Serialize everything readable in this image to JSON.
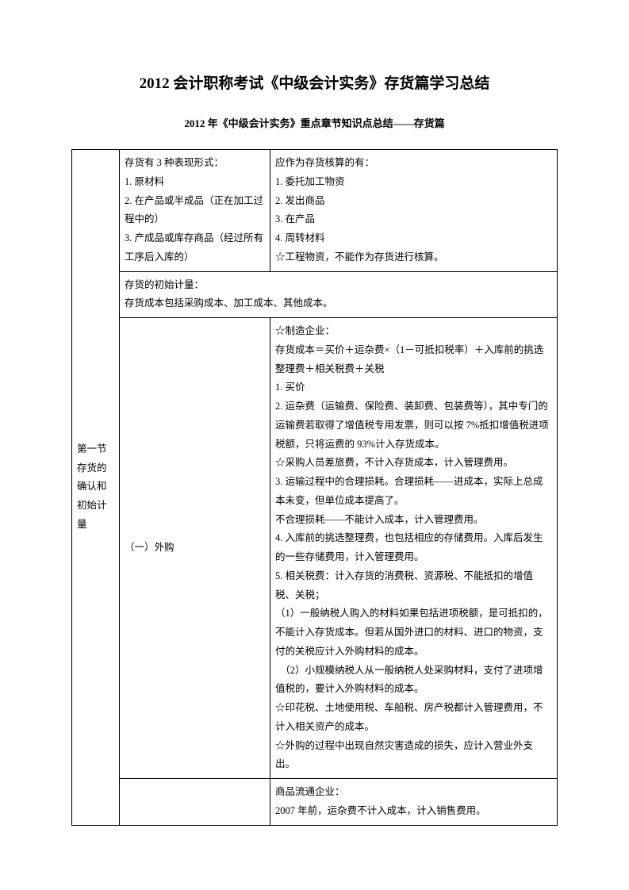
{
  "title": "2012 会计职称考试《中级会计实务》存货篇学习总结",
  "subtitle": "2012 年《中级会计实务》重点章节知识点总结——存货篇",
  "section_label": "第一节 存货的确认和初始计量",
  "row1": {
    "left": "存货有 3 种表现形式：\n1. 原材料\n2. 在产品或半成品（正在加工过程中的）\n3. 产成品或库存商品（经过所有工序后入库的）",
    "right": "应作为存货核算的有：\n1. 委托加工物资\n2. 发出商品\n3. 在产品\n4. 周转材料\n☆工程物资，不能作为存货进行核算。"
  },
  "row2": {
    "full": "存货的初始计量：\n存货成本包括采购成本、加工成本、其他成本。"
  },
  "row3": {
    "left": "（一）外购",
    "right_lines": [
      "☆制造企业：",
      "存货成本＝买价＋运杂费×（1－可抵扣税率）＋入库前的挑选整理费＋相关税费＋关税",
      "1. 买价",
      "2. 运杂费（运输费、保险费、装卸费、包装费等），其中专门的运输费若取得了增值税专用发票，则可以按 7%抵扣增值税进项税额，只将运费的 93%计入存货成本。",
      "☆采购人员差旅费，不计入存货成本，计入管理费用。",
      "3. 运输过程中的合理损耗。合理损耗——进成本，实际上总成本未变，但单位成本提高了。",
      "不合理损耗——不能计入成本，计入管理费用。",
      "4. 入库前的挑选整理费，也包括相应的存储费用。入库后发生的一些存储费用，计入管理费用。",
      "5. 相关税费：计入存货的消费税、资源税、不能抵扣的增值税、关税；",
      "（1）一般纳税人购入的材料如果包括进项税额，是可抵扣的，不能计入存货成本。但若从国外进口的材料、进口的物资，支付的关税应计入外购材料的成本。",
      "　（2）小规模纳税人从一般纳税人处采购材料，支付了进项增值税的，要计入外购材料的成本。",
      "☆印花税、土地使用税、车船税、房产税都计入管理费用，不计入相关资产的成本。",
      "☆外购的过程中出现自然灾害造成的损失，应计入营业外支出。"
    ]
  },
  "row4": {
    "right": "商品流通企业：\n2007 年前，运杂费不计入成本，计入销售费用。"
  }
}
